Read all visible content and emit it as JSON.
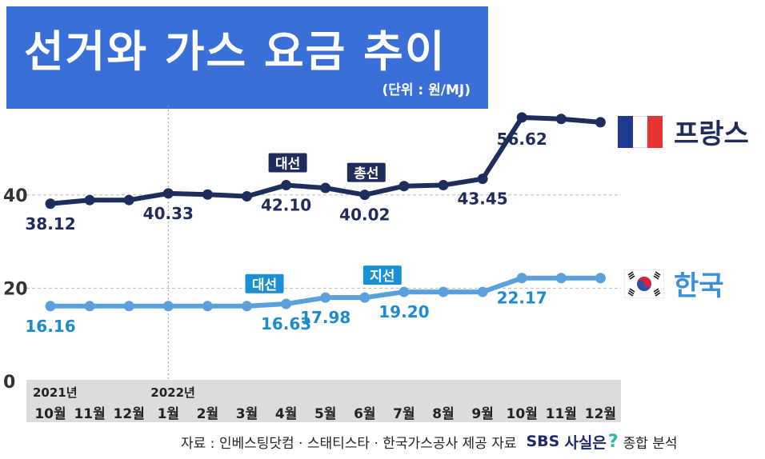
{
  "header": {
    "title": "선거와 가스 요금 추이",
    "unit": "(단위 : 원/MJ)"
  },
  "footer": {
    "source": "자료 : 인베스팅닷컴 · 스태티스타 · 한국가스공사 제공 자료",
    "brand": "SBS",
    "segment": "사실은",
    "segment_mark": "?",
    "suffix": "종합 분석"
  },
  "colors": {
    "france": "#1f2d5c",
    "korea": "#5aa0dc",
    "title_bg": "#3b6fd8",
    "axis_band": "#dcdcdc",
    "tag_blue": "#1a8fd6"
  },
  "legend": {
    "france": "프랑스",
    "korea": "한국"
  },
  "chart_data": {
    "type": "line",
    "title": "선거와 가스 요금 추이",
    "unit": "원/MJ",
    "ylim": [
      0,
      58
    ],
    "yticks": [
      0,
      20,
      40
    ],
    "categories": [
      "10월",
      "11월",
      "12월",
      "1월",
      "2월",
      "3월",
      "4월",
      "5월",
      "6월",
      "7월",
      "8월",
      "9월",
      "10월",
      "11월",
      "12월"
    ],
    "year_labels": [
      {
        "index": 0,
        "label": "2021년"
      },
      {
        "index": 3,
        "label": "2022년"
      }
    ],
    "series": [
      {
        "name": "프랑스",
        "values": [
          38.12,
          38.9,
          38.9,
          40.33,
          40.1,
          39.7,
          42.1,
          41.5,
          40.02,
          41.9,
          42.1,
          43.45,
          56.62,
          56.3,
          55.6
        ]
      },
      {
        "name": "한국",
        "values": [
          16.16,
          16.16,
          16.16,
          16.16,
          16.16,
          16.16,
          16.63,
          17.98,
          17.98,
          19.2,
          19.2,
          19.2,
          22.17,
          22.17,
          22.17
        ]
      }
    ],
    "data_labels": [
      {
        "series": 0,
        "index": 0,
        "text": "38.12"
      },
      {
        "series": 0,
        "index": 3,
        "text": "40.33"
      },
      {
        "series": 0,
        "index": 6,
        "text": "42.10"
      },
      {
        "series": 0,
        "index": 8,
        "text": "40.02"
      },
      {
        "series": 0,
        "index": 11,
        "text": "43.45"
      },
      {
        "series": 0,
        "index": 12,
        "text": "56.62"
      },
      {
        "series": 1,
        "index": 0,
        "text": "16.16"
      },
      {
        "series": 1,
        "index": 6,
        "text": "16.63"
      },
      {
        "series": 1,
        "index": 7,
        "text": "17.98"
      },
      {
        "series": 1,
        "index": 9,
        "text": "19.20"
      },
      {
        "series": 1,
        "index": 12,
        "text": "22.17"
      }
    ],
    "event_tags": [
      {
        "series": 0,
        "index": 6,
        "text": "대선"
      },
      {
        "series": 0,
        "index": 8,
        "text": "총선"
      },
      {
        "series": 1,
        "index": 5,
        "text": "대선"
      },
      {
        "series": 1,
        "index": 8,
        "text": "지선"
      }
    ],
    "divider_at_index": 3
  }
}
